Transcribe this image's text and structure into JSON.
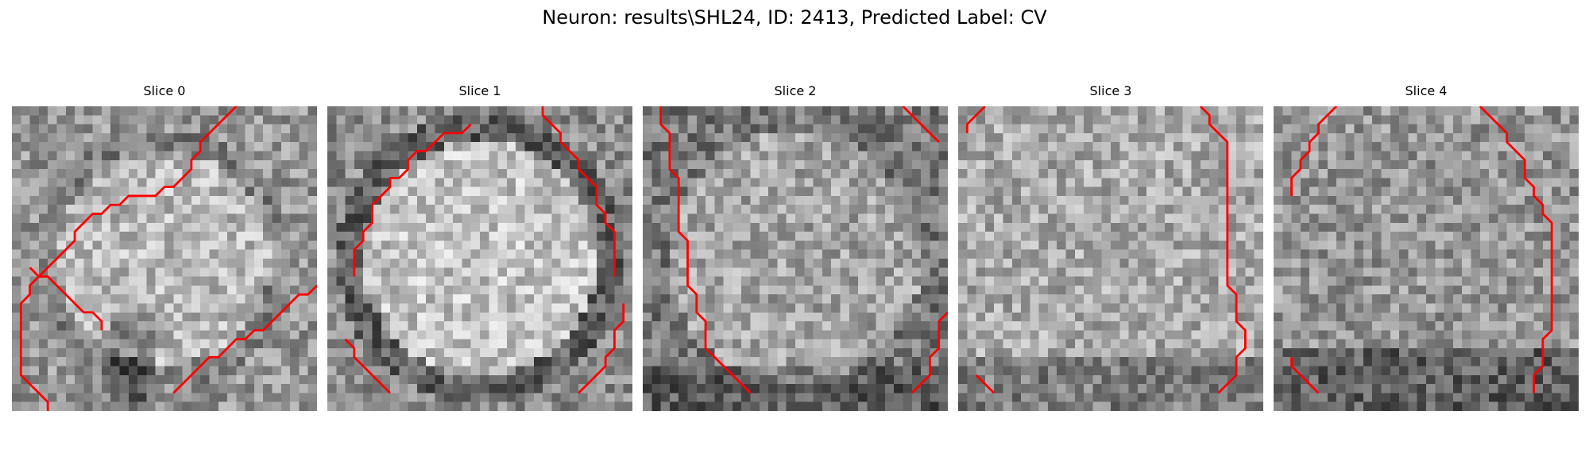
{
  "figure": {
    "title": "Neuron: results\\SHL24, ID: 2413, Predicted Label: CV"
  },
  "panels": [
    {
      "title": "Slice 0",
      "contour_color": "#ff0000",
      "contours": [
        [
          [
            4,
            34
          ],
          [
            4,
            33
          ],
          [
            3,
            32
          ],
          [
            1,
            30
          ],
          [
            1,
            23
          ],
          [
            1,
            22
          ],
          [
            2,
            21
          ],
          [
            2,
            20
          ],
          [
            3,
            19
          ],
          [
            4,
            18
          ],
          [
            5,
            17
          ],
          [
            6,
            16
          ],
          [
            7,
            15
          ],
          [
            7,
            14
          ],
          [
            8,
            13
          ],
          [
            9,
            12
          ],
          [
            10,
            12
          ],
          [
            11,
            11
          ],
          [
            12,
            11
          ],
          [
            13,
            10
          ],
          [
            14,
            10
          ],
          [
            15,
            10
          ],
          [
            16,
            10
          ],
          [
            17,
            9
          ],
          [
            18,
            9
          ],
          [
            19,
            8
          ],
          [
            20,
            7
          ],
          [
            20,
            6
          ],
          [
            21,
            5
          ],
          [
            21,
            4
          ],
          [
            22,
            3
          ],
          [
            23,
            2
          ],
          [
            24,
            1
          ],
          [
            25,
            0
          ],
          [
            25,
            0
          ]
        ],
        [
          [
            10,
            25
          ],
          [
            10,
            24
          ],
          [
            9,
            23
          ],
          [
            8,
            23
          ],
          [
            7,
            22
          ],
          [
            6,
            21
          ],
          [
            5,
            20
          ],
          [
            4,
            19
          ],
          [
            3,
            19
          ],
          [
            2,
            18
          ]
        ],
        [
          [
            18,
            32
          ],
          [
            19,
            31
          ],
          [
            20,
            30
          ],
          [
            21,
            29
          ],
          [
            22,
            28
          ],
          [
            23,
            28
          ],
          [
            24,
            27
          ],
          [
            25,
            26
          ],
          [
            26,
            26
          ],
          [
            27,
            25
          ],
          [
            28,
            25
          ],
          [
            29,
            24
          ],
          [
            30,
            23
          ],
          [
            31,
            22
          ],
          [
            32,
            21
          ],
          [
            33,
            21
          ],
          [
            34,
            20
          ]
        ]
      ],
      "image_seed": 11
    },
    {
      "title": "Slice 1",
      "contour_color": "#ff0000",
      "contours": [
        [
          [
            3,
            19
          ],
          [
            3,
            18
          ],
          [
            3,
            17
          ],
          [
            3,
            16
          ],
          [
            4,
            15
          ],
          [
            4,
            14
          ],
          [
            5,
            13
          ],
          [
            5,
            12
          ],
          [
            5,
            11
          ],
          [
            6,
            10
          ],
          [
            7,
            9
          ],
          [
            7,
            8
          ],
          [
            8,
            8
          ],
          [
            9,
            7
          ],
          [
            9,
            6
          ],
          [
            10,
            5
          ],
          [
            11,
            5
          ],
          [
            12,
            4
          ],
          [
            13,
            3
          ],
          [
            14,
            3
          ],
          [
            15,
            3
          ],
          [
            16,
            2
          ]
        ],
        [
          [
            24,
            0
          ],
          [
            24,
            1
          ],
          [
            25,
            2
          ],
          [
            26,
            3
          ],
          [
            26,
            4
          ],
          [
            27,
            5
          ],
          [
            28,
            6
          ],
          [
            28,
            7
          ],
          [
            29,
            8
          ],
          [
            30,
            9
          ],
          [
            30,
            10
          ],
          [
            30,
            11
          ],
          [
            31,
            12
          ],
          [
            31,
            13
          ],
          [
            32,
            14
          ],
          [
            32,
            15
          ],
          [
            32,
            16
          ],
          [
            32,
            17
          ],
          [
            32,
            18
          ],
          [
            32,
            19
          ]
        ],
        [
          [
            28,
            32
          ],
          [
            29,
            31
          ],
          [
            30,
            30
          ],
          [
            31,
            29
          ],
          [
            31,
            28
          ],
          [
            32,
            27
          ],
          [
            32,
            26
          ],
          [
            32,
            25
          ],
          [
            33,
            24
          ],
          [
            33,
            23
          ],
          [
            33,
            22
          ]
        ],
        [
          [
            7,
            32
          ],
          [
            6,
            31
          ],
          [
            5,
            30
          ],
          [
            4,
            29
          ],
          [
            3,
            28
          ],
          [
            3,
            27
          ],
          [
            2,
            26
          ]
        ]
      ],
      "image_seed": 23
    },
    {
      "title": "Slice 2",
      "contour_color": "#ff0000",
      "contours": [
        [
          [
            2,
            0
          ],
          [
            2,
            1
          ],
          [
            2,
            2
          ],
          [
            3,
            3
          ],
          [
            3,
            4
          ],
          [
            3,
            5
          ],
          [
            3,
            6
          ],
          [
            3,
            7
          ],
          [
            4,
            8
          ],
          [
            4,
            9
          ],
          [
            4,
            10
          ],
          [
            4,
            11
          ],
          [
            4,
            12
          ],
          [
            4,
            13
          ],
          [
            4,
            14
          ],
          [
            5,
            15
          ],
          [
            5,
            16
          ],
          [
            5,
            17
          ],
          [
            5,
            18
          ],
          [
            5,
            19
          ],
          [
            5,
            20
          ],
          [
            6,
            21
          ],
          [
            6,
            22
          ],
          [
            6,
            23
          ],
          [
            7,
            24
          ],
          [
            7,
            25
          ],
          [
            7,
            26
          ],
          [
            7,
            27
          ],
          [
            8,
            28
          ],
          [
            9,
            29
          ],
          [
            10,
            30
          ],
          [
            11,
            31
          ],
          [
            12,
            32
          ]
        ],
        [
          [
            30,
            32
          ],
          [
            31,
            31
          ],
          [
            32,
            30
          ],
          [
            32,
            29
          ],
          [
            32,
            28
          ],
          [
            33,
            27
          ],
          [
            33,
            26
          ],
          [
            33,
            25
          ],
          [
            33,
            24
          ],
          [
            34,
            23
          ]
        ],
        [
          [
            29,
            0
          ],
          [
            30,
            1
          ],
          [
            31,
            2
          ],
          [
            32,
            3
          ],
          [
            33,
            4
          ]
        ]
      ],
      "image_seed": 37
    },
    {
      "title": "Slice 3",
      "contour_color": "#ff0000",
      "contours": [
        [
          [
            1,
            3
          ],
          [
            1,
            2
          ],
          [
            2,
            1
          ],
          [
            3,
            0
          ]
        ],
        [
          [
            27,
            0
          ],
          [
            28,
            1
          ],
          [
            28,
            2
          ],
          [
            29,
            3
          ],
          [
            30,
            4
          ],
          [
            30,
            5
          ],
          [
            30,
            6
          ],
          [
            30,
            7
          ],
          [
            30,
            8
          ],
          [
            30,
            9
          ],
          [
            30,
            10
          ],
          [
            30,
            11
          ],
          [
            30,
            12
          ],
          [
            30,
            13
          ],
          [
            30,
            14
          ],
          [
            30,
            15
          ],
          [
            30,
            16
          ],
          [
            30,
            17
          ],
          [
            30,
            18
          ],
          [
            30,
            19
          ],
          [
            30,
            20
          ],
          [
            31,
            21
          ],
          [
            31,
            22
          ],
          [
            31,
            23
          ],
          [
            31,
            24
          ],
          [
            32,
            25
          ],
          [
            32,
            26
          ],
          [
            32,
            27
          ],
          [
            31,
            28
          ],
          [
            31,
            29
          ],
          [
            31,
            30
          ],
          [
            30,
            31
          ],
          [
            29,
            32
          ]
        ],
        [
          [
            2,
            30
          ],
          [
            3,
            31
          ],
          [
            4,
            32
          ]
        ]
      ],
      "image_seed": 53
    },
    {
      "title": "Slice 4",
      "contour_color": "#ff0000",
      "contours": [
        [
          [
            2,
            10
          ],
          [
            2,
            9
          ],
          [
            2,
            8
          ],
          [
            3,
            7
          ],
          [
            3,
            6
          ],
          [
            4,
            5
          ],
          [
            4,
            4
          ],
          [
            5,
            3
          ],
          [
            5,
            2
          ],
          [
            6,
            1
          ],
          [
            7,
            0
          ]
        ],
        [
          [
            23,
            0
          ],
          [
            24,
            1
          ],
          [
            25,
            2
          ],
          [
            26,
            3
          ],
          [
            26,
            4
          ],
          [
            27,
            5
          ],
          [
            28,
            6
          ],
          [
            28,
            7
          ],
          [
            28,
            8
          ],
          [
            29,
            9
          ],
          [
            29,
            10
          ],
          [
            30,
            11
          ],
          [
            30,
            12
          ],
          [
            31,
            13
          ],
          [
            31,
            14
          ],
          [
            31,
            15
          ],
          [
            31,
            16
          ],
          [
            31,
            17
          ],
          [
            31,
            18
          ],
          [
            31,
            19
          ],
          [
            31,
            20
          ],
          [
            31,
            21
          ],
          [
            31,
            22
          ],
          [
            31,
            23
          ],
          [
            31,
            24
          ],
          [
            31,
            25
          ],
          [
            30,
            26
          ],
          [
            30,
            27
          ],
          [
            30,
            28
          ],
          [
            30,
            29
          ],
          [
            29,
            30
          ],
          [
            29,
            31
          ],
          [
            29,
            32
          ]
        ],
        [
          [
            2,
            28
          ],
          [
            2,
            29
          ],
          [
            3,
            30
          ],
          [
            4,
            31
          ],
          [
            5,
            32
          ]
        ]
      ],
      "image_seed": 71
    }
  ]
}
